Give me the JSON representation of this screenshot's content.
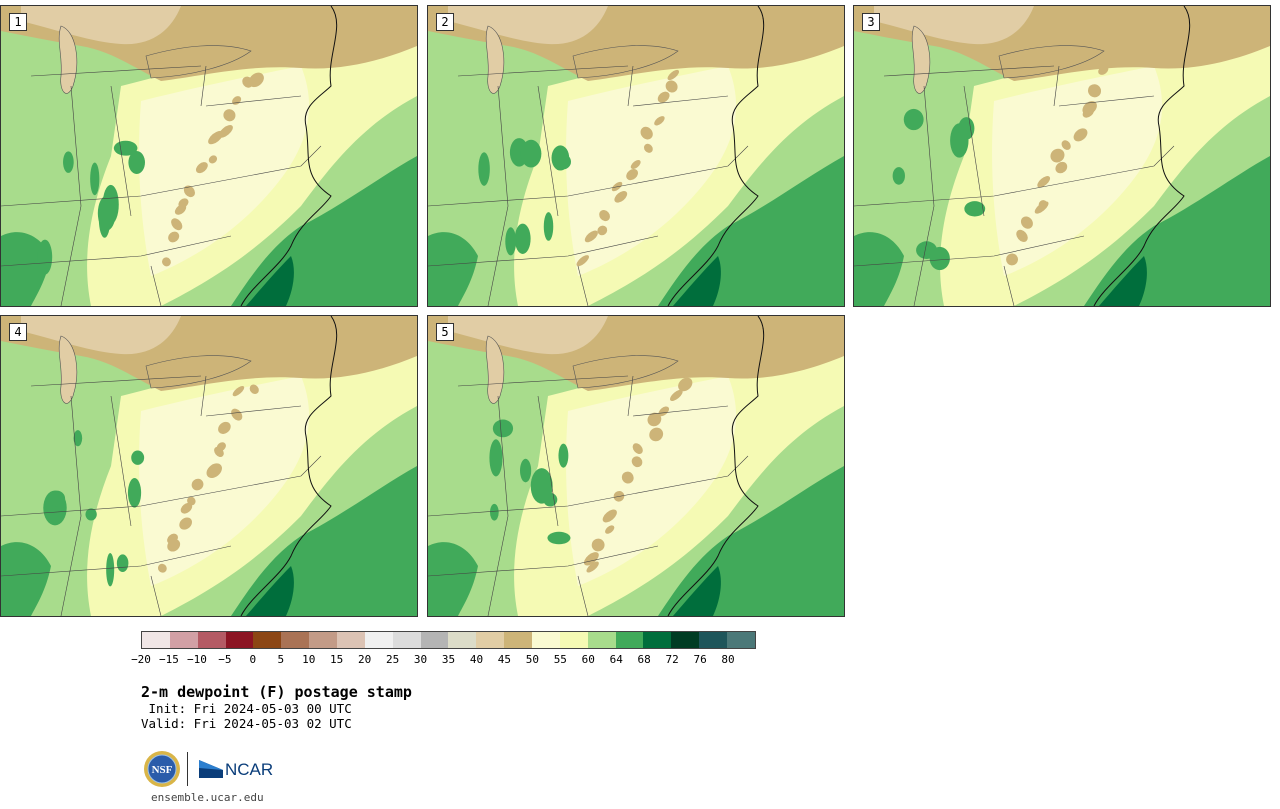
{
  "panels": [
    {
      "label": "1"
    },
    {
      "label": "2"
    },
    {
      "label": "3"
    },
    {
      "label": "4"
    },
    {
      "label": "5"
    }
  ],
  "colorbar": {
    "colors": [
      "#f0e6e6",
      "#d2a0a5",
      "#b45a64",
      "#8c1423",
      "#8c4614",
      "#aa7355",
      "#c39b87",
      "#dcc3b4",
      "#f0f0f0",
      "#dcdcdc",
      "#b4b4b4",
      "#dcdcc8",
      "#e1cda5",
      "#cdb478",
      "#fafad2",
      "#f5fab4",
      "#a8dc8c",
      "#41aa5a",
      "#006e3c",
      "#003c23",
      "#1e555a",
      "#4b7878"
    ],
    "tick_labels": [
      "−20",
      "−15",
      "−10",
      "−5",
      "0",
      "5",
      "10",
      "15",
      "20",
      "25",
      "30",
      "35",
      "40",
      "45",
      "50",
      "55",
      "60",
      "64",
      "68",
      "72",
      "76",
      "80"
    ]
  },
  "title": "2-m dewpoint (F) postage stamp",
  "init": " Init: Fri 2024-05-03 00 UTC",
  "valid": "Valid: Fri 2024-05-03 02 UTC",
  "logos": {
    "nsf_text": "NSF",
    "ncar_text": "NCAR"
  },
  "site": "ensemble.ucar.edu"
}
